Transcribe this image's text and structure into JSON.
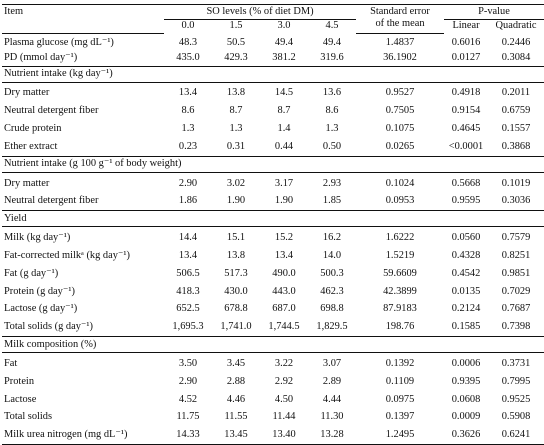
{
  "header": {
    "item": "Item",
    "so_levels": "SO levels (% of diet DM)",
    "levels": [
      "0.0",
      "1.5",
      "3.0",
      "4.5"
    ],
    "se_line1": "Standard error",
    "se_line2": "of the mean",
    "pvalue": "P-value",
    "linear": "Linear",
    "quadratic": "Quadratic"
  },
  "top_rows": [
    {
      "label": "Plasma glucose (mg dL⁻¹)",
      "values": [
        "48.3",
        "50.5",
        "49.4",
        "49.4"
      ],
      "se": "1.4837",
      "linear": "0.6016",
      "quadratic": "0.2446"
    },
    {
      "label": "PD (mmol day⁻¹)",
      "values": [
        "435.0",
        "429.3",
        "381.2",
        "319.6"
      ],
      "se": "36.1902",
      "linear": "0.0127",
      "quadratic": "0.3084"
    }
  ],
  "sections": [
    {
      "title": "Nutrient intake (kg day⁻¹)",
      "rows": [
        {
          "label": "Dry matter",
          "values": [
            "13.4",
            "13.8",
            "14.5",
            "13.6"
          ],
          "se": "0.9527",
          "linear": "0.4918",
          "quadratic": "0.2011"
        },
        {
          "label": "Neutral detergent fiber",
          "values": [
            "8.6",
            "8.7",
            "8.7",
            "8.6"
          ],
          "se": "0.7505",
          "linear": "0.9154",
          "quadratic": "0.6759"
        },
        {
          "label": "Crude protein",
          "values": [
            "1.3",
            "1.3",
            "1.4",
            "1.3"
          ],
          "se": "0.1075",
          "linear": "0.4645",
          "quadratic": "0.1557"
        },
        {
          "label": "Ether extract",
          "values": [
            "0.23",
            "0.31",
            "0.44",
            "0.50"
          ],
          "se": "0.0265",
          "linear": "<0.0001",
          "quadratic": "0.3868"
        }
      ]
    },
    {
      "title": "Nutrient intake (g 100 g⁻¹ of body weight)",
      "rows": [
        {
          "label": "Dry matter",
          "values": [
            "2.90",
            "3.02",
            "3.17",
            "2.93"
          ],
          "se": "0.1024",
          "linear": "0.5668",
          "quadratic": "0.1019"
        },
        {
          "label": "Neutral detergent fiber",
          "values": [
            "1.86",
            "1.90",
            "1.90",
            "1.85"
          ],
          "se": "0.0953",
          "linear": "0.9595",
          "quadratic": "0.3036"
        }
      ]
    },
    {
      "title": "Yield",
      "rows": [
        {
          "label": "Milk (kg day⁻¹)",
          "values": [
            "14.4",
            "15.1",
            "15.2",
            "16.2"
          ],
          "se": "1.6222",
          "linear": "0.0560",
          "quadratic": "0.7579"
        },
        {
          "label": "Fat-corrected milkᵃ (kg day⁻¹)",
          "values": [
            "13.4",
            "13.8",
            "13.4",
            "14.0"
          ],
          "se": "1.5219",
          "linear": "0.4328",
          "quadratic": "0.8251"
        },
        {
          "label": "Fat (g day⁻¹)",
          "values": [
            "506.5",
            "517.3",
            "490.0",
            "500.3"
          ],
          "se": "59.6609",
          "linear": "0.4542",
          "quadratic": "0.9851"
        },
        {
          "label": "Protein (g day⁻¹)",
          "values": [
            "418.3",
            "430.0",
            "443.0",
            "462.3"
          ],
          "se": "42.3899",
          "linear": "0.0135",
          "quadratic": "0.7029"
        },
        {
          "label": "Lactose (g day⁻¹)",
          "values": [
            "652.5",
            "678.8",
            "687.0",
            "698.8"
          ],
          "se": "87.9183",
          "linear": "0.2124",
          "quadratic": "0.7687"
        },
        {
          "label": "Total solids (g day⁻¹)",
          "values": [
            "1,695.3",
            "1,741.0",
            "1,744.5",
            "1,829.5"
          ],
          "se": "198.76",
          "linear": "0.1585",
          "quadratic": "0.7398"
        }
      ]
    },
    {
      "title": "Milk composition (%)",
      "rows": [
        {
          "label": "Fat",
          "values": [
            "3.50",
            "3.45",
            "3.22",
            "3.07"
          ],
          "se": "0.1392",
          "linear": "0.0006",
          "quadratic": "0.3731"
        },
        {
          "label": "Protein",
          "values": [
            "2.90",
            "2.88",
            "2.92",
            "2.89"
          ],
          "se": "0.1109",
          "linear": "0.9395",
          "quadratic": "0.7995"
        },
        {
          "label": "Lactose",
          "values": [
            "4.52",
            "4.46",
            "4.50",
            "4.44"
          ],
          "se": "0.0975",
          "linear": "0.0608",
          "quadratic": "0.9525"
        },
        {
          "label": "Total solids",
          "values": [
            "11.75",
            "11.55",
            "11.44",
            "11.30"
          ],
          "se": "0.1397",
          "linear": "0.0009",
          "quadratic": "0.5908"
        },
        {
          "label": "Milk urea nitrogen (mg dL⁻¹)",
          "values": [
            "14.33",
            "13.45",
            "13.40",
            "13.28"
          ],
          "se": "1.2495",
          "linear": "0.3626",
          "quadratic": "0.6241"
        }
      ]
    }
  ]
}
